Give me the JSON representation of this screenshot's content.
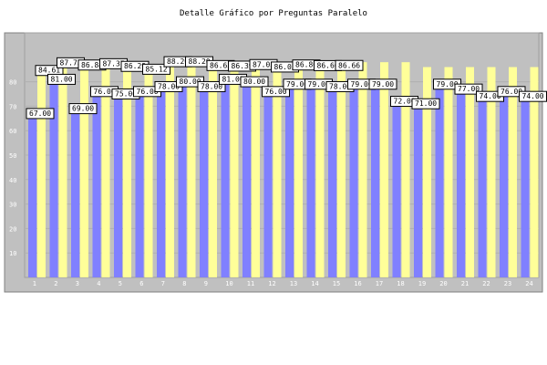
{
  "chart_data": {
    "type": "bar",
    "title": "Detalle Gráfico por Preguntas Paralelo",
    "xlabel": "",
    "ylabel": "",
    "ylim": [
      0,
      100
    ],
    "yticks": [
      10,
      20,
      30,
      40,
      50,
      60,
      70,
      80
    ],
    "categories": [
      "1",
      "2",
      "3",
      "4",
      "5",
      "6",
      "7",
      "8",
      "9",
      "10",
      "11",
      "12",
      "13",
      "14",
      "15",
      "16",
      "17",
      "18",
      "19",
      "20",
      "21",
      "22",
      "23",
      "24"
    ],
    "grid": true,
    "series": [
      {
        "name": "",
        "color": "#8080ff",
        "values": [
          67.0,
          81.0,
          69.0,
          76.0,
          75.0,
          76.0,
          78.0,
          80.0,
          78.0,
          81.0,
          80.0,
          76.0,
          79.0,
          79.0,
          78.0,
          79.0,
          79.0,
          72.0,
          71.0,
          79.0,
          77.0,
          74.0,
          76.0,
          74.0
        ],
        "labels": [
          "67.00",
          "81.00",
          "69.00",
          "76.00",
          "75.00",
          "76.00",
          "78.00",
          "80.00",
          "78.00",
          "81.00",
          "80.00",
          "76.00",
          "79.00",
          "79.00",
          "78.00",
          "79.00",
          "79.00",
          "72.00",
          "71.00",
          "79.00",
          "77.00",
          "74.00",
          "76.00",
          "74.00"
        ]
      },
      {
        "name": "",
        "color": "#ffff99",
        "values": [
          84.61,
          87.75,
          86.84,
          87.37,
          86.29,
          85.12,
          88.2,
          88.2,
          86.63,
          86.39,
          87.03,
          86.03,
          86.86,
          86.6,
          86.66,
          88.0,
          88.0,
          88.0,
          86.0,
          86.0,
          86.0,
          86.0,
          86.0,
          86.0
        ],
        "labels": [
          "84.61",
          "87.75",
          "86.84",
          "87.37",
          "86.29",
          "85.12",
          "88.20",
          "88.20",
          "86.63",
          "86.39",
          "87.03",
          "86.03",
          "86.86",
          "86.60",
          "86.66",
          "",
          "",
          "",
          "",
          "",
          "",
          "",
          "",
          ""
        ]
      }
    ]
  }
}
